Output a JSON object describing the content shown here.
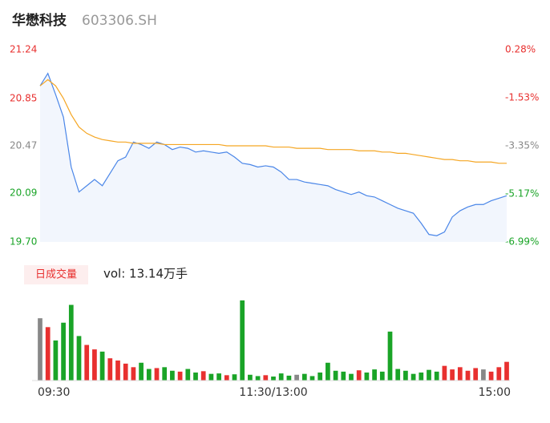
{
  "header": {
    "name": "华懋科技",
    "code": "603306.SH"
  },
  "volume_button": "日成交量",
  "volume_summary": "vol: 13.14万手",
  "chart_data": {
    "type": "line",
    "xlim": [
      0,
      240
    ],
    "xticks": [
      {
        "value": 0,
        "label": "09:30"
      },
      {
        "value": 120,
        "label": "11:30/13:00"
      },
      {
        "value": 240,
        "label": "15:00"
      }
    ],
    "x": [
      0,
      4,
      8,
      12,
      16,
      20,
      24,
      28,
      32,
      36,
      40,
      44,
      48,
      52,
      56,
      60,
      64,
      68,
      72,
      76,
      80,
      84,
      88,
      92,
      96,
      100,
      104,
      108,
      112,
      116,
      120,
      124,
      128,
      132,
      136,
      140,
      144,
      148,
      152,
      156,
      160,
      164,
      168,
      172,
      176,
      180,
      184,
      188,
      192,
      196,
      200,
      204,
      208,
      212,
      216,
      220,
      224,
      228,
      232,
      236,
      240
    ],
    "ylim": [
      19.7,
      21.24
    ],
    "yticks": [
      {
        "value": 19.7,
        "label": "19.70"
      },
      20.09,
      20.47,
      20.85,
      21.24
    ],
    "y2lim": [
      -6.99,
      0.28
    ],
    "y2ticks": [
      {
        "value": -6.99,
        "label": "-6.99%"
      },
      {
        "value": -5.17,
        "label": "-5.17%"
      },
      {
        "value": -3.35,
        "label": "-3.35%"
      },
      {
        "value": -1.53,
        "label": "-1.53%"
      },
      {
        "value": 0.28,
        "label": "0.28%"
      }
    ],
    "up_color": "#e8302f",
    "down_color": "#1aa427",
    "flat_color": "#888888",
    "area_color": "#f2f6fd",
    "series": [
      {
        "color": "#4a86e8",
        "values": [
          20.95,
          21.05,
          20.88,
          20.7,
          20.3,
          20.1,
          20.15,
          20.2,
          20.15,
          20.25,
          20.35,
          20.38,
          20.5,
          20.48,
          20.45,
          20.5,
          20.48,
          20.44,
          20.46,
          20.45,
          20.42,
          20.43,
          20.42,
          20.41,
          20.42,
          20.38,
          20.33,
          20.32,
          20.3,
          20.31,
          20.3,
          20.26,
          20.2,
          20.2,
          20.18,
          20.17,
          20.16,
          20.15,
          20.12,
          20.1,
          20.08,
          20.1,
          20.07,
          20.06,
          20.03,
          20.0,
          19.97,
          19.95,
          19.93,
          19.85,
          19.76,
          19.75,
          19.78,
          19.9,
          19.95,
          19.98,
          20.0,
          20.0,
          20.03,
          20.05,
          20.07
        ]
      },
      {
        "color": "#f5a623",
        "values": [
          20.95,
          21.0,
          20.95,
          20.85,
          20.72,
          20.62,
          20.57,
          20.54,
          20.52,
          20.51,
          20.5,
          20.5,
          20.49,
          20.49,
          20.49,
          20.49,
          20.48,
          20.48,
          20.48,
          20.48,
          20.48,
          20.48,
          20.48,
          20.48,
          20.47,
          20.47,
          20.47,
          20.47,
          20.47,
          20.47,
          20.46,
          20.46,
          20.46,
          20.45,
          20.45,
          20.45,
          20.45,
          20.44,
          20.44,
          20.44,
          20.44,
          20.43,
          20.43,
          20.43,
          20.42,
          20.42,
          20.41,
          20.41,
          20.4,
          20.39,
          20.38,
          20.37,
          20.36,
          20.36,
          20.35,
          20.35,
          20.34,
          20.34,
          20.34,
          20.33,
          20.33
        ]
      }
    ],
    "volume": [
      1400,
      1200,
      900,
      1300,
      1700,
      1000,
      800,
      700,
      650,
      500,
      450,
      380,
      300,
      400,
      260,
      280,
      300,
      220,
      200,
      260,
      180,
      210,
      150,
      160,
      120,
      140,
      1800,
      130,
      100,
      120,
      90,
      160,
      110,
      130,
      150,
      100,
      180,
      400,
      220,
      200,
      150,
      230,
      180,
      250,
      200,
      1100,
      260,
      220,
      150,
      180,
      240,
      200,
      330,
      250,
      300,
      220,
      280,
      250,
      200,
      300,
      420
    ]
  }
}
